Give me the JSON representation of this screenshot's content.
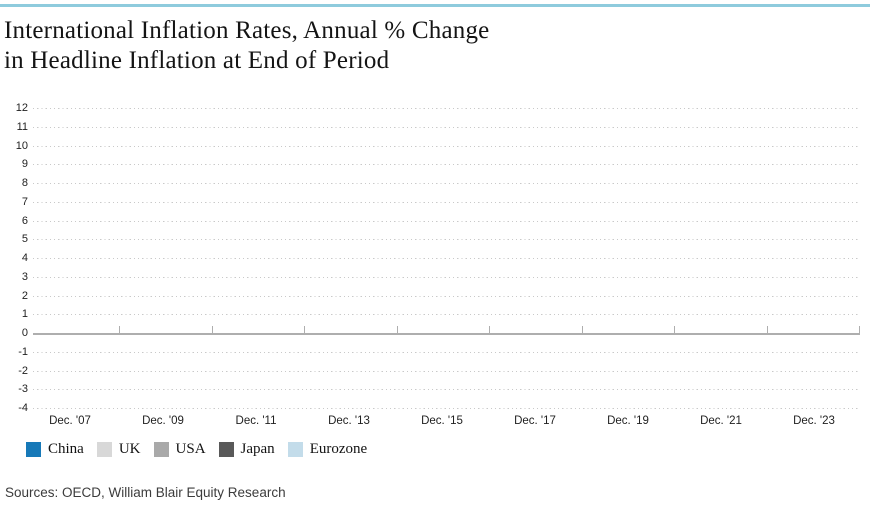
{
  "page": {
    "title_line1": "International Inflation Rates, Annual % Change",
    "title_line2": "in Headline Inflation at End of Period",
    "sources": "Sources: OECD, William Blair Equity Research"
  },
  "colors": {
    "top_bar": "#8ECBDD",
    "gridline": "#C9C9C9",
    "zero_line": "#AEAEAE",
    "axis_text": "#1F1F1F",
    "title_text": "#141414"
  },
  "legend": [
    {
      "label": "China",
      "color": "#1779B8"
    },
    {
      "label": "UK",
      "color": "#D8D8D8"
    },
    {
      "label": "USA",
      "color": "#A9A9A9"
    },
    {
      "label": "Japan",
      "color": "#595959"
    },
    {
      "label": "Eurozone",
      "color": "#C3DCEA"
    }
  ],
  "chart_data": {
    "type": "line",
    "title": "International Inflation Rates, Annual % Change in Headline Inflation at End of Period",
    "x_tick_labels": [
      "Dec. '07",
      "Dec. '09",
      "Dec. '11",
      "Dec. '13",
      "Dec. '15",
      "Dec. '17",
      "Dec. '19",
      "Dec. '21",
      "Dec. '23"
    ],
    "y_ticks": [
      12,
      11,
      10,
      9,
      8,
      7,
      6,
      5,
      4,
      3,
      2,
      1,
      0,
      -1,
      -2,
      -3,
      -4
    ],
    "ylim": [
      -4,
      12
    ],
    "xlabel": "",
    "ylabel": "",
    "grid": true,
    "legend_position": "bottom-left",
    "series": [
      {
        "name": "China",
        "values": []
      },
      {
        "name": "UK",
        "values": []
      },
      {
        "name": "USA",
        "values": []
      },
      {
        "name": "Japan",
        "values": []
      },
      {
        "name": "Eurozone",
        "values": []
      }
    ],
    "plot_area_empty": true
  }
}
